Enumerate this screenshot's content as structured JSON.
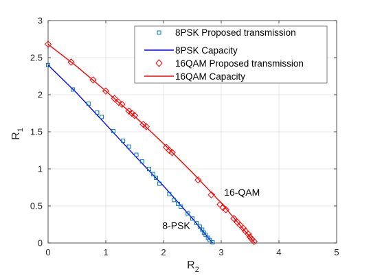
{
  "chart_data": {
    "type": "line",
    "xlabel": "R",
    "xlabel_sub": "2",
    "ylabel": "R",
    "ylabel_sub": "1",
    "xlim": [
      0,
      5
    ],
    "ylim": [
      0,
      3
    ],
    "xticks": [
      "0",
      "1",
      "2",
      "3",
      "4",
      "5"
    ],
    "yticks": [
      "0",
      "0.5",
      "1",
      "1.5",
      "2",
      "2.5",
      "3"
    ],
    "grid": true,
    "legend_position": "top-right",
    "colors": {
      "psk": "#0000ff",
      "qam": "#ff0000",
      "axis": "#262626",
      "grid": "#dfdfdf"
    },
    "series": [
      {
        "name": "8PSK Proposed transmission",
        "kind": "scatter",
        "marker": "square",
        "color": "#0072bd",
        "x": [
          0,
          0.43,
          0.7,
          0.85,
          0.93,
          1.13,
          1.3,
          1.4,
          1.53,
          1.63,
          1.75,
          1.82,
          1.87,
          1.93,
          2.1,
          2.18,
          2.25,
          2.3,
          2.42,
          2.5,
          2.57,
          2.63,
          2.67,
          2.7,
          2.73,
          2.77,
          2.8,
          2.85
        ],
        "y": [
          2.4,
          2.07,
          1.88,
          1.76,
          1.7,
          1.51,
          1.38,
          1.3,
          1.19,
          1.1,
          1.0,
          0.93,
          0.88,
          0.8,
          0.66,
          0.58,
          0.53,
          0.49,
          0.4,
          0.33,
          0.27,
          0.22,
          0.18,
          0.14,
          0.11,
          0.07,
          0.04,
          0.01
        ]
      },
      {
        "name": "8PSK Capacity",
        "kind": "line",
        "color": "#0000ff",
        "x": [
          0,
          0.5,
          1,
          1.5,
          2,
          2.5,
          2.85
        ],
        "y": [
          2.4,
          2.02,
          1.6,
          1.18,
          0.77,
          0.33,
          0.0
        ]
      },
      {
        "name": "16QAM Proposed transmission",
        "kind": "scatter",
        "marker": "diamond",
        "color": "#ff0000",
        "x": [
          0,
          0.4,
          0.78,
          1.0,
          1.15,
          1.22,
          1.28,
          1.4,
          1.45,
          1.5,
          1.65,
          1.7,
          2.05,
          2.1,
          2.15,
          2.6,
          2.83,
          2.98,
          3.03,
          3.08,
          3.22,
          3.28,
          3.33,
          3.38,
          3.42,
          3.47,
          3.5,
          3.53,
          3.57
        ],
        "y": [
          2.68,
          2.44,
          2.2,
          2.05,
          1.95,
          1.9,
          1.87,
          1.78,
          1.75,
          1.72,
          1.6,
          1.57,
          1.29,
          1.25,
          1.22,
          0.85,
          0.65,
          0.52,
          0.48,
          0.45,
          0.33,
          0.28,
          0.24,
          0.2,
          0.16,
          0.12,
          0.08,
          0.05,
          0.02
        ]
      },
      {
        "name": "16QAM Capacity",
        "kind": "line",
        "color": "#ff0000",
        "x": [
          0,
          0.5,
          1,
          1.5,
          2,
          2.5,
          3,
          3.5,
          3.58
        ],
        "y": [
          2.68,
          2.38,
          2.05,
          1.71,
          1.34,
          0.95,
          0.54,
          0.08,
          0.0
        ]
      }
    ],
    "annotations": [
      {
        "text": "16-QAM",
        "x": 3.05,
        "y": 0.64
      },
      {
        "text": "8-PSK",
        "x": 1.98,
        "y": 0.19
      }
    ]
  }
}
